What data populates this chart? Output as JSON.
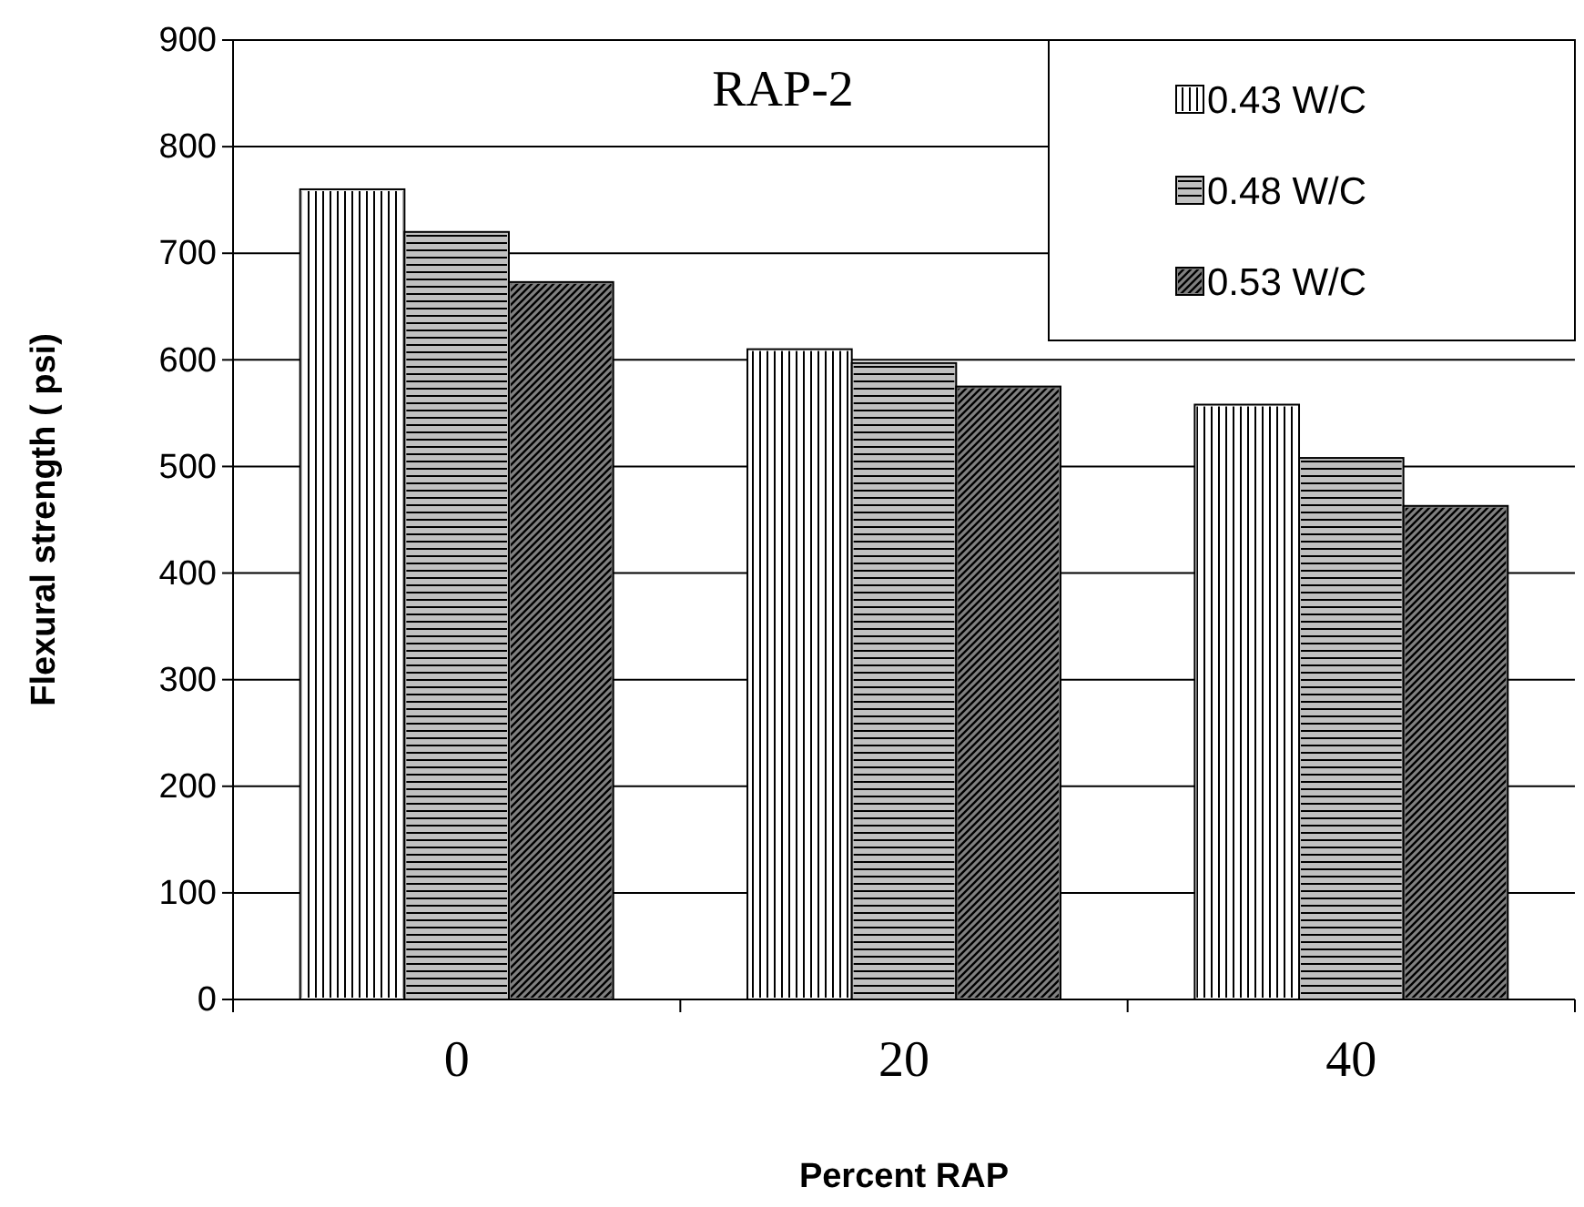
{
  "chart_data": {
    "type": "bar",
    "title": "RAP-2",
    "xlabel": "Percent RAP",
    "ylabel": "Flexural strength ( psi)",
    "categories": [
      "0",
      "20",
      "40"
    ],
    "series": [
      {
        "name": "0.43 W/C",
        "color": "#ffffff",
        "values": [
          760,
          610,
          558
        ]
      },
      {
        "name": "0.48 W/C",
        "color": "#c0c0c0",
        "values": [
          720,
          597,
          508
        ]
      },
      {
        "name": "0.53 W/C",
        "color": "#808080",
        "values": [
          673,
          575,
          463
        ]
      }
    ],
    "ylim": [
      0,
      900
    ],
    "yticks": [
      0,
      100,
      200,
      300,
      400,
      500,
      600,
      700,
      800,
      900
    ],
    "grid": "y",
    "legend": "top right"
  }
}
